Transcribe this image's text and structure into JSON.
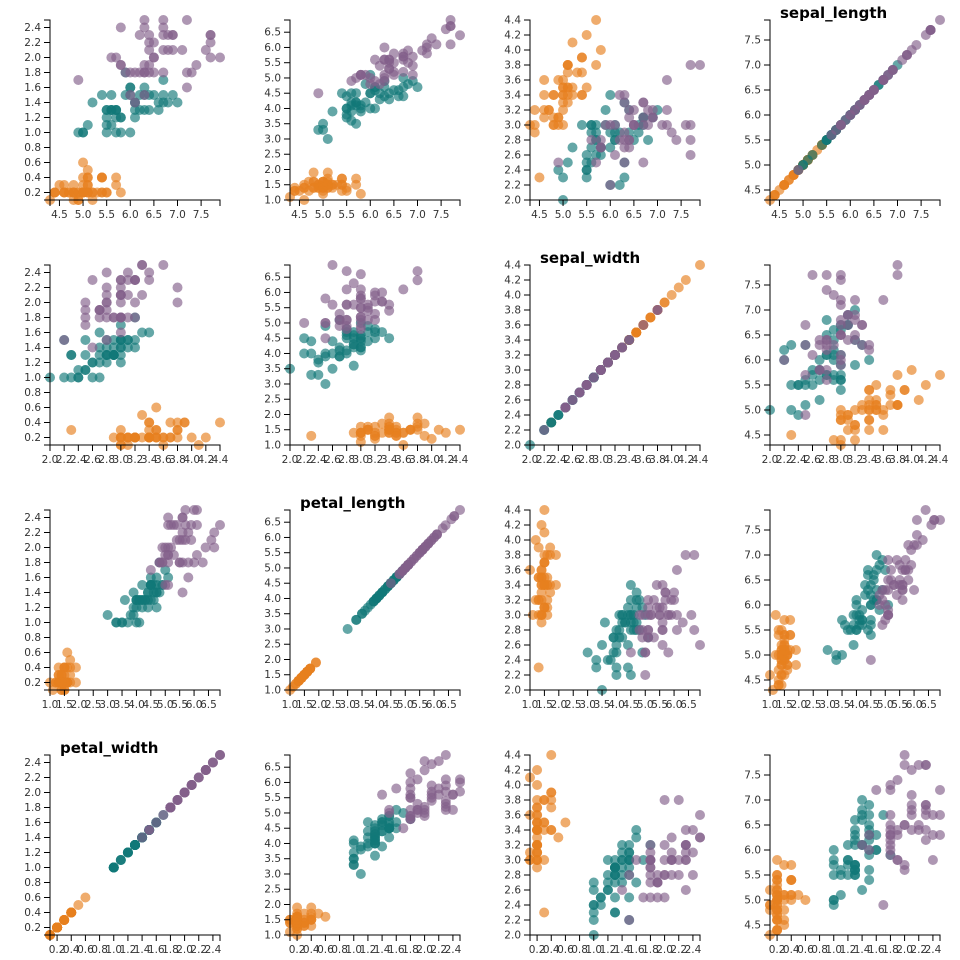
{
  "chart_data": {
    "type": "scatter",
    "layout": "scatterplot-matrix",
    "variables": [
      "sepal_length",
      "sepal_width",
      "petal_length",
      "petal_width"
    ],
    "field_order": [
      "sepal_length",
      "sepal_width",
      "petal_length",
      "petal_width"
    ],
    "domains": {
      "sepal_length": [
        4.3,
        7.9
      ],
      "sepal_width": [
        2.0,
        4.4
      ],
      "petal_length": [
        1.0,
        6.9
      ],
      "petal_width": [
        0.1,
        2.5
      ]
    },
    "ticks": {
      "sepal_length": [
        "4.5",
        "5.0",
        "5.5",
        "6.0",
        "6.5",
        "7.0",
        "7.5"
      ],
      "sepal_width": [
        "2.0",
        "2.2",
        "2.4",
        "2.6",
        "2.8",
        "3.0",
        "3.2",
        "3.4",
        "3.6",
        "3.8",
        "4.0",
        "4.2",
        "4.4"
      ],
      "petal_length": [
        "1.0",
        "1.5",
        "2.0",
        "2.5",
        "3.0",
        "3.5",
        "4.0",
        "4.5",
        "5.0",
        "5.5",
        "6.0",
        "6.5"
      ],
      "petal_width": [
        "0.2",
        "0.4",
        "0.6",
        "0.8",
        "1.0",
        "1.2",
        "1.4",
        "1.6",
        "1.8",
        "2.0",
        "2.2",
        "2.4"
      ]
    },
    "grid": false,
    "species_colors": {
      "setosa": "#e6801f",
      "versicolor": "#117878",
      "virginica": "#83608a"
    },
    "point_opacity": 0.65,
    "points": {
      "setosa": [
        [
          5.1,
          3.5,
          1.4,
          0.2
        ],
        [
          4.9,
          3.0,
          1.4,
          0.2
        ],
        [
          4.7,
          3.2,
          1.3,
          0.2
        ],
        [
          4.6,
          3.1,
          1.5,
          0.2
        ],
        [
          5.0,
          3.6,
          1.4,
          0.2
        ],
        [
          5.4,
          3.9,
          1.7,
          0.4
        ],
        [
          4.6,
          3.4,
          1.4,
          0.3
        ],
        [
          5.0,
          3.4,
          1.5,
          0.2
        ],
        [
          4.4,
          2.9,
          1.4,
          0.2
        ],
        [
          4.9,
          3.1,
          1.5,
          0.1
        ],
        [
          5.4,
          3.7,
          1.5,
          0.2
        ],
        [
          4.8,
          3.4,
          1.6,
          0.2
        ],
        [
          4.8,
          3.0,
          1.4,
          0.1
        ],
        [
          4.3,
          3.0,
          1.1,
          0.1
        ],
        [
          5.8,
          4.0,
          1.2,
          0.2
        ],
        [
          5.7,
          4.4,
          1.5,
          0.4
        ],
        [
          5.4,
          3.9,
          1.3,
          0.4
        ],
        [
          5.1,
          3.5,
          1.4,
          0.3
        ],
        [
          5.7,
          3.8,
          1.7,
          0.3
        ],
        [
          5.1,
          3.8,
          1.5,
          0.3
        ],
        [
          5.4,
          3.4,
          1.7,
          0.2
        ],
        [
          5.1,
          3.7,
          1.5,
          0.4
        ],
        [
          4.6,
          3.6,
          1.0,
          0.2
        ],
        [
          5.1,
          3.3,
          1.7,
          0.5
        ],
        [
          4.8,
          3.4,
          1.9,
          0.2
        ],
        [
          5.0,
          3.0,
          1.6,
          0.2
        ],
        [
          5.0,
          3.4,
          1.6,
          0.4
        ],
        [
          5.2,
          3.5,
          1.5,
          0.2
        ],
        [
          5.2,
          3.4,
          1.4,
          0.2
        ],
        [
          4.7,
          3.2,
          1.6,
          0.2
        ],
        [
          4.8,
          3.1,
          1.6,
          0.2
        ],
        [
          5.4,
          3.4,
          1.5,
          0.4
        ],
        [
          5.2,
          4.1,
          1.5,
          0.1
        ],
        [
          5.5,
          4.2,
          1.4,
          0.2
        ],
        [
          4.9,
          3.1,
          1.5,
          0.2
        ],
        [
          5.0,
          3.2,
          1.2,
          0.2
        ],
        [
          5.5,
          3.5,
          1.3,
          0.2
        ],
        [
          4.9,
          3.6,
          1.4,
          0.1
        ],
        [
          4.4,
          3.0,
          1.3,
          0.2
        ],
        [
          5.1,
          3.4,
          1.5,
          0.2
        ],
        [
          5.0,
          3.5,
          1.3,
          0.3
        ],
        [
          4.5,
          2.3,
          1.3,
          0.3
        ],
        [
          4.4,
          3.2,
          1.3,
          0.2
        ],
        [
          5.0,
          3.5,
          1.6,
          0.6
        ],
        [
          5.1,
          3.8,
          1.9,
          0.4
        ],
        [
          4.8,
          3.0,
          1.4,
          0.3
        ],
        [
          5.1,
          3.8,
          1.6,
          0.2
        ],
        [
          4.6,
          3.2,
          1.4,
          0.2
        ],
        [
          5.3,
          3.7,
          1.5,
          0.2
        ],
        [
          5.0,
          3.3,
          1.4,
          0.2
        ]
      ],
      "versicolor": [
        [
          7.0,
          3.2,
          4.7,
          1.4
        ],
        [
          6.4,
          3.2,
          4.5,
          1.5
        ],
        [
          6.9,
          3.1,
          4.9,
          1.5
        ],
        [
          5.5,
          2.3,
          4.0,
          1.3
        ],
        [
          6.5,
          2.8,
          4.6,
          1.5
        ],
        [
          5.7,
          2.8,
          4.5,
          1.3
        ],
        [
          6.3,
          3.3,
          4.7,
          1.6
        ],
        [
          4.9,
          2.4,
          3.3,
          1.0
        ],
        [
          6.6,
          2.9,
          4.6,
          1.3
        ],
        [
          5.2,
          2.7,
          3.9,
          1.4
        ],
        [
          5.0,
          2.0,
          3.5,
          1.0
        ],
        [
          5.9,
          3.0,
          4.2,
          1.5
        ],
        [
          6.0,
          2.2,
          4.0,
          1.0
        ],
        [
          6.1,
          2.9,
          4.7,
          1.4
        ],
        [
          5.6,
          2.9,
          3.6,
          1.3
        ],
        [
          6.7,
          3.1,
          4.4,
          1.4
        ],
        [
          5.6,
          3.0,
          4.5,
          1.5
        ],
        [
          5.8,
          2.7,
          4.1,
          1.0
        ],
        [
          6.2,
          2.2,
          4.5,
          1.5
        ],
        [
          5.6,
          2.5,
          3.9,
          1.1
        ],
        [
          5.9,
          3.2,
          4.8,
          1.8
        ],
        [
          6.1,
          2.8,
          4.0,
          1.3
        ],
        [
          6.3,
          2.5,
          4.9,
          1.5
        ],
        [
          6.1,
          2.8,
          4.7,
          1.2
        ],
        [
          6.4,
          2.9,
          4.3,
          1.3
        ],
        [
          6.6,
          3.0,
          4.4,
          1.4
        ],
        [
          6.8,
          2.8,
          4.8,
          1.4
        ],
        [
          6.7,
          3.0,
          5.0,
          1.7
        ],
        [
          6.0,
          2.9,
          4.5,
          1.5
        ],
        [
          5.7,
          2.6,
          3.5,
          1.0
        ],
        [
          5.5,
          2.4,
          3.8,
          1.1
        ],
        [
          5.5,
          2.4,
          3.7,
          1.0
        ],
        [
          5.8,
          2.7,
          3.9,
          1.2
        ],
        [
          6.0,
          2.7,
          5.1,
          1.6
        ],
        [
          5.4,
          3.0,
          4.5,
          1.5
        ],
        [
          6.0,
          3.4,
          4.5,
          1.6
        ],
        [
          6.7,
          3.1,
          4.7,
          1.5
        ],
        [
          6.3,
          2.3,
          4.4,
          1.3
        ],
        [
          5.6,
          3.0,
          4.1,
          1.3
        ],
        [
          5.5,
          2.5,
          4.0,
          1.3
        ],
        [
          5.5,
          2.6,
          4.4,
          1.2
        ],
        [
          6.1,
          3.0,
          4.6,
          1.4
        ],
        [
          5.8,
          2.6,
          4.0,
          1.2
        ],
        [
          5.0,
          2.3,
          3.3,
          1.0
        ],
        [
          5.6,
          2.7,
          4.2,
          1.3
        ],
        [
          5.7,
          3.0,
          4.2,
          1.2
        ],
        [
          5.7,
          2.9,
          4.2,
          1.3
        ],
        [
          6.2,
          2.9,
          4.3,
          1.3
        ],
        [
          5.1,
          2.5,
          3.0,
          1.1
        ],
        [
          5.7,
          2.8,
          4.1,
          1.3
        ]
      ],
      "virginica": [
        [
          6.3,
          3.3,
          6.0,
          2.5
        ],
        [
          5.8,
          2.7,
          5.1,
          1.9
        ],
        [
          7.1,
          3.0,
          5.9,
          2.1
        ],
        [
          6.3,
          2.9,
          5.6,
          1.8
        ],
        [
          6.5,
          3.0,
          5.8,
          2.2
        ],
        [
          7.6,
          3.0,
          6.6,
          2.1
        ],
        [
          4.9,
          2.5,
          4.5,
          1.7
        ],
        [
          7.3,
          2.9,
          6.3,
          1.8
        ],
        [
          6.7,
          2.5,
          5.8,
          1.8
        ],
        [
          7.2,
          3.6,
          6.1,
          2.5
        ],
        [
          6.5,
          3.2,
          5.1,
          2.0
        ],
        [
          6.4,
          2.7,
          5.3,
          1.9
        ],
        [
          6.8,
          3.0,
          5.5,
          2.1
        ],
        [
          5.7,
          2.5,
          5.0,
          2.0
        ],
        [
          5.8,
          2.8,
          5.1,
          2.4
        ],
        [
          6.4,
          3.2,
          5.3,
          2.3
        ],
        [
          6.5,
          3.0,
          5.5,
          1.8
        ],
        [
          7.7,
          3.8,
          6.7,
          2.2
        ],
        [
          7.7,
          2.6,
          6.9,
          2.3
        ],
        [
          6.0,
          2.2,
          5.0,
          1.5
        ],
        [
          6.9,
          3.2,
          5.7,
          2.3
        ],
        [
          5.6,
          2.8,
          4.9,
          2.0
        ],
        [
          7.7,
          2.8,
          6.7,
          2.0
        ],
        [
          6.3,
          2.7,
          4.9,
          1.8
        ],
        [
          6.7,
          3.3,
          5.7,
          2.1
        ],
        [
          7.2,
          3.2,
          6.0,
          1.8
        ],
        [
          6.2,
          2.8,
          4.8,
          1.8
        ],
        [
          6.1,
          3.0,
          4.9,
          1.8
        ],
        [
          6.4,
          2.8,
          5.6,
          2.1
        ],
        [
          7.2,
          3.0,
          5.8,
          1.6
        ],
        [
          7.4,
          2.8,
          6.1,
          1.9
        ],
        [
          7.9,
          3.8,
          6.4,
          2.0
        ],
        [
          6.4,
          2.8,
          5.6,
          2.2
        ],
        [
          6.3,
          2.8,
          5.1,
          1.5
        ],
        [
          6.1,
          2.6,
          5.6,
          1.4
        ],
        [
          7.7,
          3.0,
          6.1,
          2.3
        ],
        [
          6.3,
          3.4,
          5.6,
          2.4
        ],
        [
          6.4,
          3.1,
          5.5,
          1.8
        ],
        [
          6.0,
          3.0,
          4.8,
          1.8
        ],
        [
          6.9,
          3.1,
          5.4,
          2.1
        ],
        [
          6.7,
          3.1,
          5.6,
          2.4
        ],
        [
          6.9,
          3.1,
          5.1,
          2.3
        ],
        [
          5.8,
          2.7,
          5.1,
          1.9
        ],
        [
          6.8,
          3.2,
          5.9,
          2.3
        ],
        [
          6.7,
          3.3,
          5.7,
          2.5
        ],
        [
          6.7,
          3.0,
          5.2,
          2.3
        ],
        [
          6.3,
          2.5,
          5.0,
          1.9
        ],
        [
          6.5,
          3.0,
          5.2,
          2.0
        ],
        [
          6.2,
          3.4,
          5.4,
          2.3
        ],
        [
          5.9,
          3.0,
          5.1,
          1.8
        ]
      ]
    }
  }
}
